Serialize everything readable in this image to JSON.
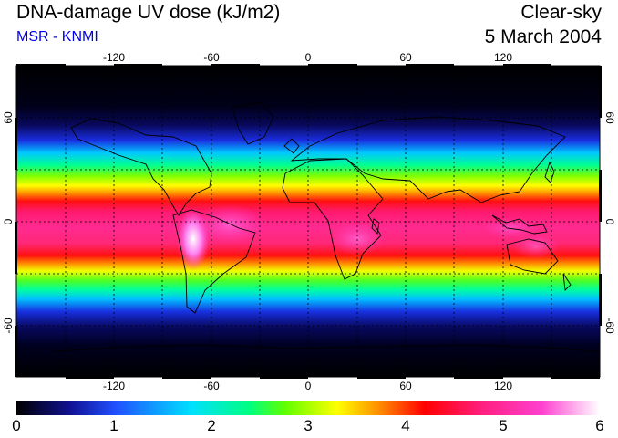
{
  "header": {
    "title": "DNA-damage UV dose (kJ/m2)",
    "source": "MSR - KNMI",
    "condition": "Clear-sky",
    "date": "5 March 2004"
  },
  "map": {
    "projection": "equirectangular",
    "lon_range": [
      -180,
      180
    ],
    "lat_range": [
      -90,
      90
    ],
    "lon_ticks": [
      "-120",
      "-60",
      "0",
      "60",
      "120"
    ],
    "lat_ticks_left": [
      "60",
      "0",
      "-60"
    ],
    "lat_ticks_right": [
      "60",
      "0",
      "-60"
    ],
    "grid": "dashed, every 30 degrees",
    "coastlines": true
  },
  "colorbar": {
    "min": 0,
    "max": 6,
    "labels": [
      "0",
      "1",
      "2",
      "3",
      "4",
      "5",
      "6"
    ],
    "colors": [
      "#000000",
      "#1010a0",
      "#2050ff",
      "#00e0ff",
      "#00ff80",
      "#60ff00",
      "#ffff00",
      "#ff9000",
      "#ff0000",
      "#ff2080",
      "#ff40d0",
      "#ffffff"
    ]
  }
}
